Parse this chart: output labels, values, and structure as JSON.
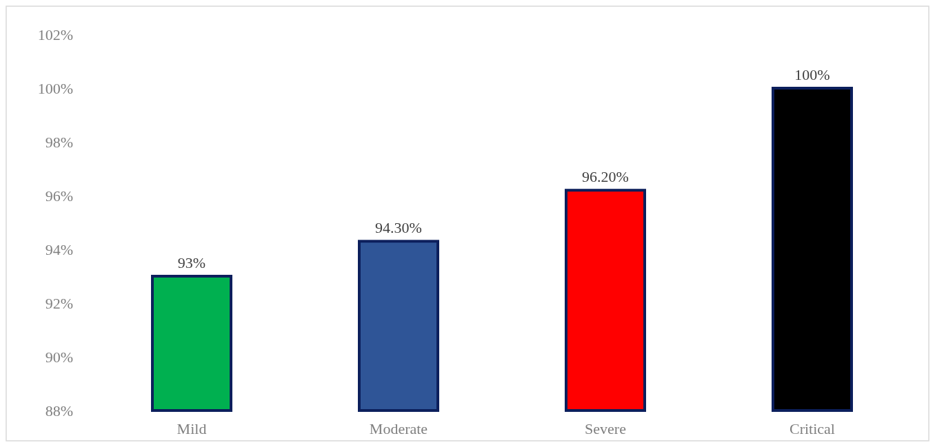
{
  "chart_data": {
    "type": "bar",
    "categories": [
      "Mild",
      "Moderate",
      "Severe",
      "Critical"
    ],
    "values": [
      93,
      94.3,
      96.2,
      100
    ],
    "colors": [
      "#00b050",
      "#2f5597",
      "#ff0000",
      "#000000"
    ],
    "value_labels": [
      "93%",
      "94.30%",
      "96.20%",
      "100%"
    ],
    "ylim": [
      88,
      102
    ],
    "yticks": [
      {
        "value": 88,
        "label": "88%"
      },
      {
        "value": 90,
        "label": "90%"
      },
      {
        "value": 92,
        "label": "92%"
      },
      {
        "value": 94,
        "label": "94%"
      },
      {
        "value": 96,
        "label": "96%"
      },
      {
        "value": 98,
        "label": "98%"
      },
      {
        "value": 100,
        "label": "100%"
      },
      {
        "value": 102,
        "label": "102%"
      }
    ],
    "grid": false
  }
}
